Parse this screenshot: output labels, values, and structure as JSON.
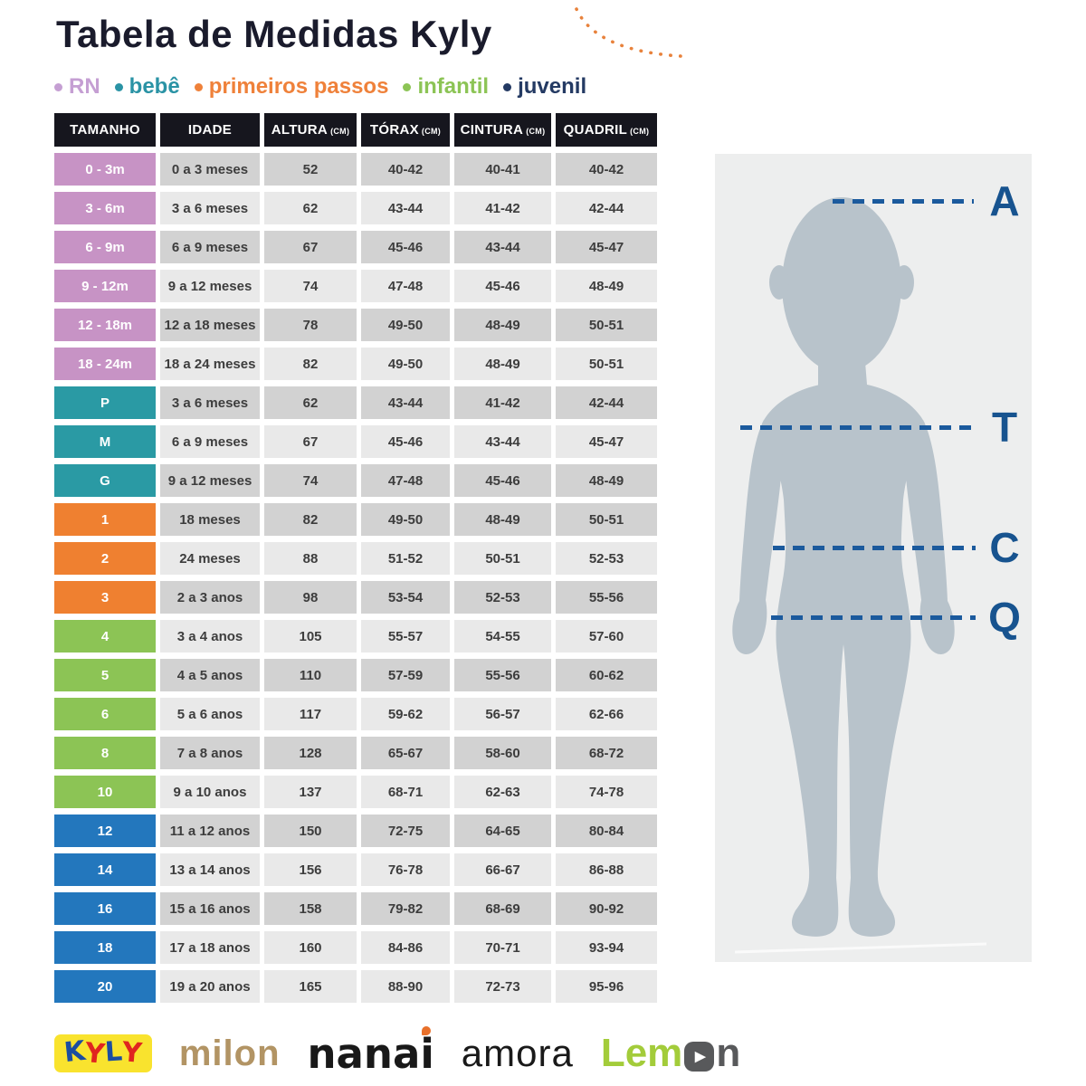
{
  "title": "Tabela de Medidas Kyly",
  "legend": {
    "items": [
      {
        "label": "RN",
        "color": "#c59fd3"
      },
      {
        "label": "bebê",
        "color": "#2a93a5"
      },
      {
        "label": "primeiros passos",
        "color": "#ef813a"
      },
      {
        "label": "infantil",
        "color": "#8cc455"
      },
      {
        "label": "juvenil",
        "color": "#243a63"
      }
    ]
  },
  "table": {
    "headers": [
      {
        "label": "TAMANHO",
        "unit": ""
      },
      {
        "label": "IDADE",
        "unit": ""
      },
      {
        "label": "ALTURA",
        "unit": "(CM)"
      },
      {
        "label": "TÓRAX",
        "unit": "(CM)"
      },
      {
        "label": "CINTURA",
        "unit": "(CM)"
      },
      {
        "label": "QUADRIL",
        "unit": "(CM)"
      }
    ],
    "header_bg": "#16161e",
    "category_colors": {
      "rn": "#c793c5",
      "bebe": "#2a9aa4",
      "pp": "#ef8030",
      "infantil": "#8cc455",
      "juvenil": "#2377bd"
    },
    "shades": {
      "dark": "#d2d2d2",
      "light": "#e9e9e9"
    }
  },
  "chart_data": {
    "type": "table",
    "title": "Tabela de Medidas Kyly",
    "columns": [
      "TAMANHO",
      "IDADE",
      "ALTURA (CM)",
      "TÓRAX (CM)",
      "CINTURA (CM)",
      "QUADRIL (CM)"
    ],
    "rows": [
      {
        "tamanho": "0 - 3m",
        "idade": "0 a 3 meses",
        "altura": "52",
        "torax": "40-42",
        "cintura": "40-41",
        "quadril": "40-42",
        "category": "rn",
        "shade": "dark"
      },
      {
        "tamanho": "3 - 6m",
        "idade": "3 a 6 meses",
        "altura": "62",
        "torax": "43-44",
        "cintura": "41-42",
        "quadril": "42-44",
        "category": "rn",
        "shade": "light"
      },
      {
        "tamanho": "6 - 9m",
        "idade": "6 a 9 meses",
        "altura": "67",
        "torax": "45-46",
        "cintura": "43-44",
        "quadril": "45-47",
        "category": "rn",
        "shade": "dark"
      },
      {
        "tamanho": "9 - 12m",
        "idade": "9 a 12 meses",
        "altura": "74",
        "torax": "47-48",
        "cintura": "45-46",
        "quadril": "48-49",
        "category": "rn",
        "shade": "light"
      },
      {
        "tamanho": "12 - 18m",
        "idade": "12 a 18 meses",
        "altura": "78",
        "torax": "49-50",
        "cintura": "48-49",
        "quadril": "50-51",
        "category": "rn",
        "shade": "dark"
      },
      {
        "tamanho": "18 - 24m",
        "idade": "18 a 24 meses",
        "altura": "82",
        "torax": "49-50",
        "cintura": "48-49",
        "quadril": "50-51",
        "category": "rn",
        "shade": "light"
      },
      {
        "tamanho": "P",
        "idade": "3 a 6 meses",
        "altura": "62",
        "torax": "43-44",
        "cintura": "41-42",
        "quadril": "42-44",
        "category": "bebe",
        "shade": "dark"
      },
      {
        "tamanho": "M",
        "idade": "6 a 9 meses",
        "altura": "67",
        "torax": "45-46",
        "cintura": "43-44",
        "quadril": "45-47",
        "category": "bebe",
        "shade": "light"
      },
      {
        "tamanho": "G",
        "idade": "9 a 12 meses",
        "altura": "74",
        "torax": "47-48",
        "cintura": "45-46",
        "quadril": "48-49",
        "category": "bebe",
        "shade": "dark"
      },
      {
        "tamanho": "1",
        "idade": "18 meses",
        "altura": "82",
        "torax": "49-50",
        "cintura": "48-49",
        "quadril": "50-51",
        "category": "pp",
        "shade": "dark"
      },
      {
        "tamanho": "2",
        "idade": "24 meses",
        "altura": "88",
        "torax": "51-52",
        "cintura": "50-51",
        "quadril": "52-53",
        "category": "pp",
        "shade": "light"
      },
      {
        "tamanho": "3",
        "idade": "2 a 3 anos",
        "altura": "98",
        "torax": "53-54",
        "cintura": "52-53",
        "quadril": "55-56",
        "category": "pp",
        "shade": "dark"
      },
      {
        "tamanho": "4",
        "idade": "3 a 4 anos",
        "altura": "105",
        "torax": "55-57",
        "cintura": "54-55",
        "quadril": "57-60",
        "category": "infantil",
        "shade": "light"
      },
      {
        "tamanho": "5",
        "idade": "4 a 5 anos",
        "altura": "110",
        "torax": "57-59",
        "cintura": "55-56",
        "quadril": "60-62",
        "category": "infantil",
        "shade": "dark"
      },
      {
        "tamanho": "6",
        "idade": "5 a 6 anos",
        "altura": "117",
        "torax": "59-62",
        "cintura": "56-57",
        "quadril": "62-66",
        "category": "infantil",
        "shade": "light"
      },
      {
        "tamanho": "8",
        "idade": "7 a 8 anos",
        "altura": "128",
        "torax": "65-67",
        "cintura": "58-60",
        "quadril": "68-72",
        "category": "infantil",
        "shade": "dark"
      },
      {
        "tamanho": "10",
        "idade": "9 a 10 anos",
        "altura": "137",
        "torax": "68-71",
        "cintura": "62-63",
        "quadril": "74-78",
        "category": "infantil",
        "shade": "light"
      },
      {
        "tamanho": "12",
        "idade": "11 a 12 anos",
        "altura": "150",
        "torax": "72-75",
        "cintura": "64-65",
        "quadril": "80-84",
        "category": "juvenil",
        "shade": "dark"
      },
      {
        "tamanho": "14",
        "idade": "13 a 14 anos",
        "altura": "156",
        "torax": "76-78",
        "cintura": "66-67",
        "quadril": "86-88",
        "category": "juvenil",
        "shade": "light"
      },
      {
        "tamanho": "16",
        "idade": "15 a 16 anos",
        "altura": "158",
        "torax": "79-82",
        "cintura": "68-69",
        "quadril": "90-92",
        "category": "juvenil",
        "shade": "dark"
      },
      {
        "tamanho": "18",
        "idade": "17 a 18 anos",
        "altura": "160",
        "torax": "84-86",
        "cintura": "70-71",
        "quadril": "93-94",
        "category": "juvenil",
        "shade": "light"
      },
      {
        "tamanho": "20",
        "idade": "19 a 20 anos",
        "altura": "165",
        "torax": "88-90",
        "cintura": "72-73",
        "quadril": "95-96",
        "category": "juvenil",
        "shade": "light"
      }
    ]
  },
  "figure": {
    "labels": [
      {
        "letter": "A"
      },
      {
        "letter": "T"
      },
      {
        "letter": "C"
      },
      {
        "letter": "Q"
      }
    ],
    "line_color": "#1b5a9d",
    "letter_color": "#17538f",
    "panel_bg": "#edeeee",
    "silhouette_color": "#b8c3cb"
  },
  "decoration": {
    "arc_color": "#e8823c"
  },
  "footer": {
    "logos": [
      {
        "name": "kyly",
        "letters": [
          {
            "ch": "K",
            "color": "#1b4da1"
          },
          {
            "ch": "Y",
            "color": "#e0251f"
          },
          {
            "ch": "L",
            "color": "#1b4da1"
          },
          {
            "ch": "Y",
            "color": "#e0251f"
          }
        ],
        "bg": "#f9e32e"
      },
      {
        "name": "milon",
        "text": "milon",
        "color": "#b29464"
      },
      {
        "name": "nanai",
        "stem": "nana",
        "last": "i",
        "color": "#191919",
        "tittle_color": "#e8702a"
      },
      {
        "name": "amora",
        "text": "amora",
        "color": "#191919"
      },
      {
        "name": "lemon",
        "part_green": "Lem",
        "part_gray": "n",
        "green": "#a3cc3a",
        "gray": "#58595b",
        "play": "▶"
      }
    ]
  }
}
